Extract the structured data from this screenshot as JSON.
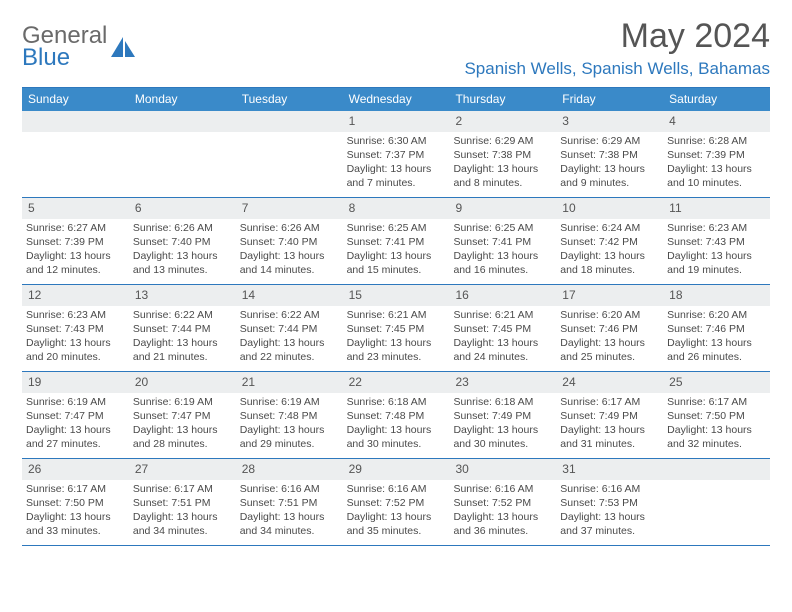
{
  "brand": {
    "part1": "General",
    "part2": "Blue"
  },
  "title": "May 2024",
  "location": "Spanish Wells, Spanish Wells, Bahamas",
  "colors": {
    "header_bar": "#3a8ac9",
    "accent": "#2d78bd",
    "daynum_bg": "#eceeef",
    "text": "#4a4a4a"
  },
  "weekdays": [
    "Sunday",
    "Monday",
    "Tuesday",
    "Wednesday",
    "Thursday",
    "Friday",
    "Saturday"
  ],
  "weeks": [
    [
      {
        "n": "",
        "sr": "",
        "ss": "",
        "dl1": "",
        "dl2": ""
      },
      {
        "n": "",
        "sr": "",
        "ss": "",
        "dl1": "",
        "dl2": ""
      },
      {
        "n": "",
        "sr": "",
        "ss": "",
        "dl1": "",
        "dl2": ""
      },
      {
        "n": "1",
        "sr": "Sunrise: 6:30 AM",
        "ss": "Sunset: 7:37 PM",
        "dl1": "Daylight: 13 hours",
        "dl2": "and 7 minutes."
      },
      {
        "n": "2",
        "sr": "Sunrise: 6:29 AM",
        "ss": "Sunset: 7:38 PM",
        "dl1": "Daylight: 13 hours",
        "dl2": "and 8 minutes."
      },
      {
        "n": "3",
        "sr": "Sunrise: 6:29 AM",
        "ss": "Sunset: 7:38 PM",
        "dl1": "Daylight: 13 hours",
        "dl2": "and 9 minutes."
      },
      {
        "n": "4",
        "sr": "Sunrise: 6:28 AM",
        "ss": "Sunset: 7:39 PM",
        "dl1": "Daylight: 13 hours",
        "dl2": "and 10 minutes."
      }
    ],
    [
      {
        "n": "5",
        "sr": "Sunrise: 6:27 AM",
        "ss": "Sunset: 7:39 PM",
        "dl1": "Daylight: 13 hours",
        "dl2": "and 12 minutes."
      },
      {
        "n": "6",
        "sr": "Sunrise: 6:26 AM",
        "ss": "Sunset: 7:40 PM",
        "dl1": "Daylight: 13 hours",
        "dl2": "and 13 minutes."
      },
      {
        "n": "7",
        "sr": "Sunrise: 6:26 AM",
        "ss": "Sunset: 7:40 PM",
        "dl1": "Daylight: 13 hours",
        "dl2": "and 14 minutes."
      },
      {
        "n": "8",
        "sr": "Sunrise: 6:25 AM",
        "ss": "Sunset: 7:41 PM",
        "dl1": "Daylight: 13 hours",
        "dl2": "and 15 minutes."
      },
      {
        "n": "9",
        "sr": "Sunrise: 6:25 AM",
        "ss": "Sunset: 7:41 PM",
        "dl1": "Daylight: 13 hours",
        "dl2": "and 16 minutes."
      },
      {
        "n": "10",
        "sr": "Sunrise: 6:24 AM",
        "ss": "Sunset: 7:42 PM",
        "dl1": "Daylight: 13 hours",
        "dl2": "and 18 minutes."
      },
      {
        "n": "11",
        "sr": "Sunrise: 6:23 AM",
        "ss": "Sunset: 7:43 PM",
        "dl1": "Daylight: 13 hours",
        "dl2": "and 19 minutes."
      }
    ],
    [
      {
        "n": "12",
        "sr": "Sunrise: 6:23 AM",
        "ss": "Sunset: 7:43 PM",
        "dl1": "Daylight: 13 hours",
        "dl2": "and 20 minutes."
      },
      {
        "n": "13",
        "sr": "Sunrise: 6:22 AM",
        "ss": "Sunset: 7:44 PM",
        "dl1": "Daylight: 13 hours",
        "dl2": "and 21 minutes."
      },
      {
        "n": "14",
        "sr": "Sunrise: 6:22 AM",
        "ss": "Sunset: 7:44 PM",
        "dl1": "Daylight: 13 hours",
        "dl2": "and 22 minutes."
      },
      {
        "n": "15",
        "sr": "Sunrise: 6:21 AM",
        "ss": "Sunset: 7:45 PM",
        "dl1": "Daylight: 13 hours",
        "dl2": "and 23 minutes."
      },
      {
        "n": "16",
        "sr": "Sunrise: 6:21 AM",
        "ss": "Sunset: 7:45 PM",
        "dl1": "Daylight: 13 hours",
        "dl2": "and 24 minutes."
      },
      {
        "n": "17",
        "sr": "Sunrise: 6:20 AM",
        "ss": "Sunset: 7:46 PM",
        "dl1": "Daylight: 13 hours",
        "dl2": "and 25 minutes."
      },
      {
        "n": "18",
        "sr": "Sunrise: 6:20 AM",
        "ss": "Sunset: 7:46 PM",
        "dl1": "Daylight: 13 hours",
        "dl2": "and 26 minutes."
      }
    ],
    [
      {
        "n": "19",
        "sr": "Sunrise: 6:19 AM",
        "ss": "Sunset: 7:47 PM",
        "dl1": "Daylight: 13 hours",
        "dl2": "and 27 minutes."
      },
      {
        "n": "20",
        "sr": "Sunrise: 6:19 AM",
        "ss": "Sunset: 7:47 PM",
        "dl1": "Daylight: 13 hours",
        "dl2": "and 28 minutes."
      },
      {
        "n": "21",
        "sr": "Sunrise: 6:19 AM",
        "ss": "Sunset: 7:48 PM",
        "dl1": "Daylight: 13 hours",
        "dl2": "and 29 minutes."
      },
      {
        "n": "22",
        "sr": "Sunrise: 6:18 AM",
        "ss": "Sunset: 7:48 PM",
        "dl1": "Daylight: 13 hours",
        "dl2": "and 30 minutes."
      },
      {
        "n": "23",
        "sr": "Sunrise: 6:18 AM",
        "ss": "Sunset: 7:49 PM",
        "dl1": "Daylight: 13 hours",
        "dl2": "and 30 minutes."
      },
      {
        "n": "24",
        "sr": "Sunrise: 6:17 AM",
        "ss": "Sunset: 7:49 PM",
        "dl1": "Daylight: 13 hours",
        "dl2": "and 31 minutes."
      },
      {
        "n": "25",
        "sr": "Sunrise: 6:17 AM",
        "ss": "Sunset: 7:50 PM",
        "dl1": "Daylight: 13 hours",
        "dl2": "and 32 minutes."
      }
    ],
    [
      {
        "n": "26",
        "sr": "Sunrise: 6:17 AM",
        "ss": "Sunset: 7:50 PM",
        "dl1": "Daylight: 13 hours",
        "dl2": "and 33 minutes."
      },
      {
        "n": "27",
        "sr": "Sunrise: 6:17 AM",
        "ss": "Sunset: 7:51 PM",
        "dl1": "Daylight: 13 hours",
        "dl2": "and 34 minutes."
      },
      {
        "n": "28",
        "sr": "Sunrise: 6:16 AM",
        "ss": "Sunset: 7:51 PM",
        "dl1": "Daylight: 13 hours",
        "dl2": "and 34 minutes."
      },
      {
        "n": "29",
        "sr": "Sunrise: 6:16 AM",
        "ss": "Sunset: 7:52 PM",
        "dl1": "Daylight: 13 hours",
        "dl2": "and 35 minutes."
      },
      {
        "n": "30",
        "sr": "Sunrise: 6:16 AM",
        "ss": "Sunset: 7:52 PM",
        "dl1": "Daylight: 13 hours",
        "dl2": "and 36 minutes."
      },
      {
        "n": "31",
        "sr": "Sunrise: 6:16 AM",
        "ss": "Sunset: 7:53 PM",
        "dl1": "Daylight: 13 hours",
        "dl2": "and 37 minutes."
      },
      {
        "n": "",
        "sr": "",
        "ss": "",
        "dl1": "",
        "dl2": ""
      }
    ]
  ]
}
